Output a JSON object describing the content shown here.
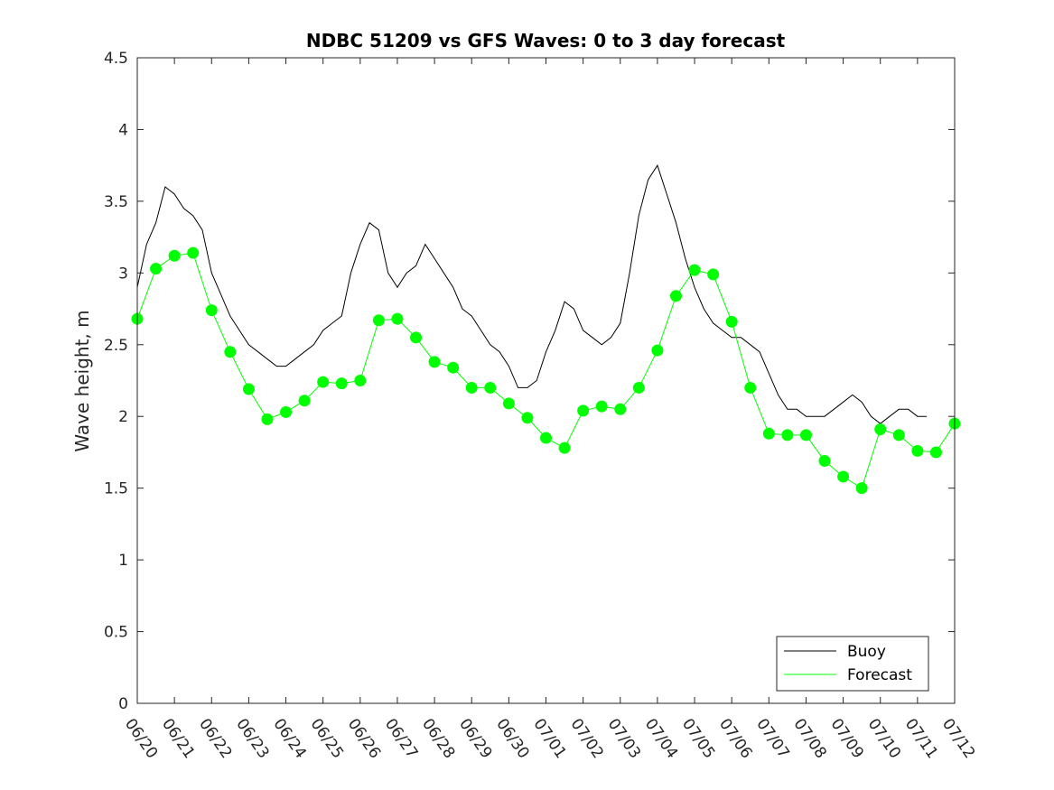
{
  "chart_data": {
    "type": "line",
    "title": "NDBC 51209 vs GFS Waves: 0 to 3 day forecast",
    "xlabel": "",
    "ylabel": "Wave height, m",
    "xlim": [
      "06/20",
      "07/12"
    ],
    "ylim": [
      0,
      4.5
    ],
    "yticks": [
      "0",
      "0.5",
      "1",
      "1.5",
      "2",
      "2.5",
      "3",
      "3.5",
      "4",
      "4.5"
    ],
    "xticks": [
      "06/20",
      "06/21",
      "06/22",
      "06/23",
      "06/24",
      "06/25",
      "06/26",
      "06/27",
      "06/28",
      "06/29",
      "06/30",
      "07/01",
      "07/02",
      "07/03",
      "07/04",
      "07/05",
      "07/06",
      "07/07",
      "07/08",
      "07/09",
      "07/10",
      "07/11",
      "07/12"
    ],
    "grid": false,
    "legend_position": "bottom-right",
    "legend": [
      "Buoy",
      "Forecast"
    ],
    "colors": {
      "buoy": "#000000",
      "forecast": "#00ff00",
      "axis": "#262626"
    },
    "series": [
      {
        "name": "Buoy",
        "x": [
          0,
          0.25,
          0.5,
          0.75,
          1,
          1.25,
          1.5,
          1.75,
          2,
          2.25,
          2.5,
          2.75,
          3,
          3.25,
          3.5,
          3.75,
          4,
          4.25,
          4.5,
          4.75,
          5,
          5.25,
          5.5,
          5.75,
          6,
          6.25,
          6.5,
          6.75,
          7,
          7.25,
          7.5,
          7.75,
          8,
          8.25,
          8.5,
          8.75,
          9,
          9.25,
          9.5,
          9.75,
          10,
          10.25,
          10.5,
          10.75,
          11,
          11.25,
          11.5,
          11.75,
          12,
          12.25,
          12.5,
          12.75,
          13,
          13.25,
          13.5,
          13.75,
          14,
          14.25,
          14.5,
          14.75,
          15,
          15.25,
          15.5,
          15.75,
          16,
          16.25,
          16.5,
          16.75,
          17,
          17.25,
          17.5,
          17.75,
          18,
          18.25,
          18.5,
          18.75,
          19,
          19.25,
          19.5,
          19.75,
          20,
          20.25,
          20.5,
          20.75,
          21,
          21.25
        ],
        "y": [
          2.9,
          3.2,
          3.35,
          3.6,
          3.55,
          3.45,
          3.4,
          3.3,
          3.0,
          2.85,
          2.7,
          2.6,
          2.5,
          2.45,
          2.4,
          2.35,
          2.35,
          2.4,
          2.45,
          2.5,
          2.6,
          2.65,
          2.7,
          3.0,
          3.2,
          3.35,
          3.3,
          3.0,
          2.9,
          3.0,
          3.05,
          3.2,
          3.1,
          3.0,
          2.9,
          2.75,
          2.7,
          2.6,
          2.5,
          2.45,
          2.35,
          2.2,
          2.2,
          2.25,
          2.45,
          2.6,
          2.8,
          2.75,
          2.6,
          2.55,
          2.5,
          2.55,
          2.65,
          3.0,
          3.4,
          3.65,
          3.75,
          3.55,
          3.35,
          3.1,
          2.9,
          2.75,
          2.65,
          2.6,
          2.55,
          2.55,
          2.5,
          2.45,
          2.3,
          2.15,
          2.05,
          2.05,
          2.0,
          2.0,
          2.0,
          2.05,
          2.1,
          2.15,
          2.1,
          2.0,
          1.95,
          2.0,
          2.05,
          2.05,
          2.0,
          2.0
        ]
      },
      {
        "name": "Forecast",
        "x": [
          0,
          0.5,
          1,
          1.5,
          2,
          2.5,
          3,
          3.5,
          4,
          4.5,
          5,
          5.5,
          6,
          6.5,
          7,
          7.5,
          8,
          8.5,
          9,
          9.5,
          10,
          10.5,
          11,
          11.5,
          12,
          12.5,
          13,
          13.5,
          14,
          14.5,
          15,
          15.5,
          16,
          16.5,
          17,
          17.5,
          18,
          18.5,
          19,
          19.5,
          20,
          20.5,
          21,
          21.5,
          22
        ],
        "y": [
          2.68,
          3.03,
          3.12,
          3.14,
          2.74,
          2.45,
          2.19,
          1.98,
          2.03,
          2.11,
          2.24,
          2.23,
          2.25,
          2.67,
          2.68,
          2.55,
          2.38,
          2.34,
          2.2,
          2.2,
          2.09,
          1.99,
          1.85,
          1.78,
          2.04,
          2.07,
          2.05,
          2.2,
          2.46,
          2.84,
          3.02,
          2.99,
          2.66,
          2.2,
          1.88,
          1.87,
          1.87,
          1.69,
          1.58,
          1.5,
          1.91,
          1.87,
          1.76,
          1.75,
          1.95
        ]
      }
    ]
  }
}
